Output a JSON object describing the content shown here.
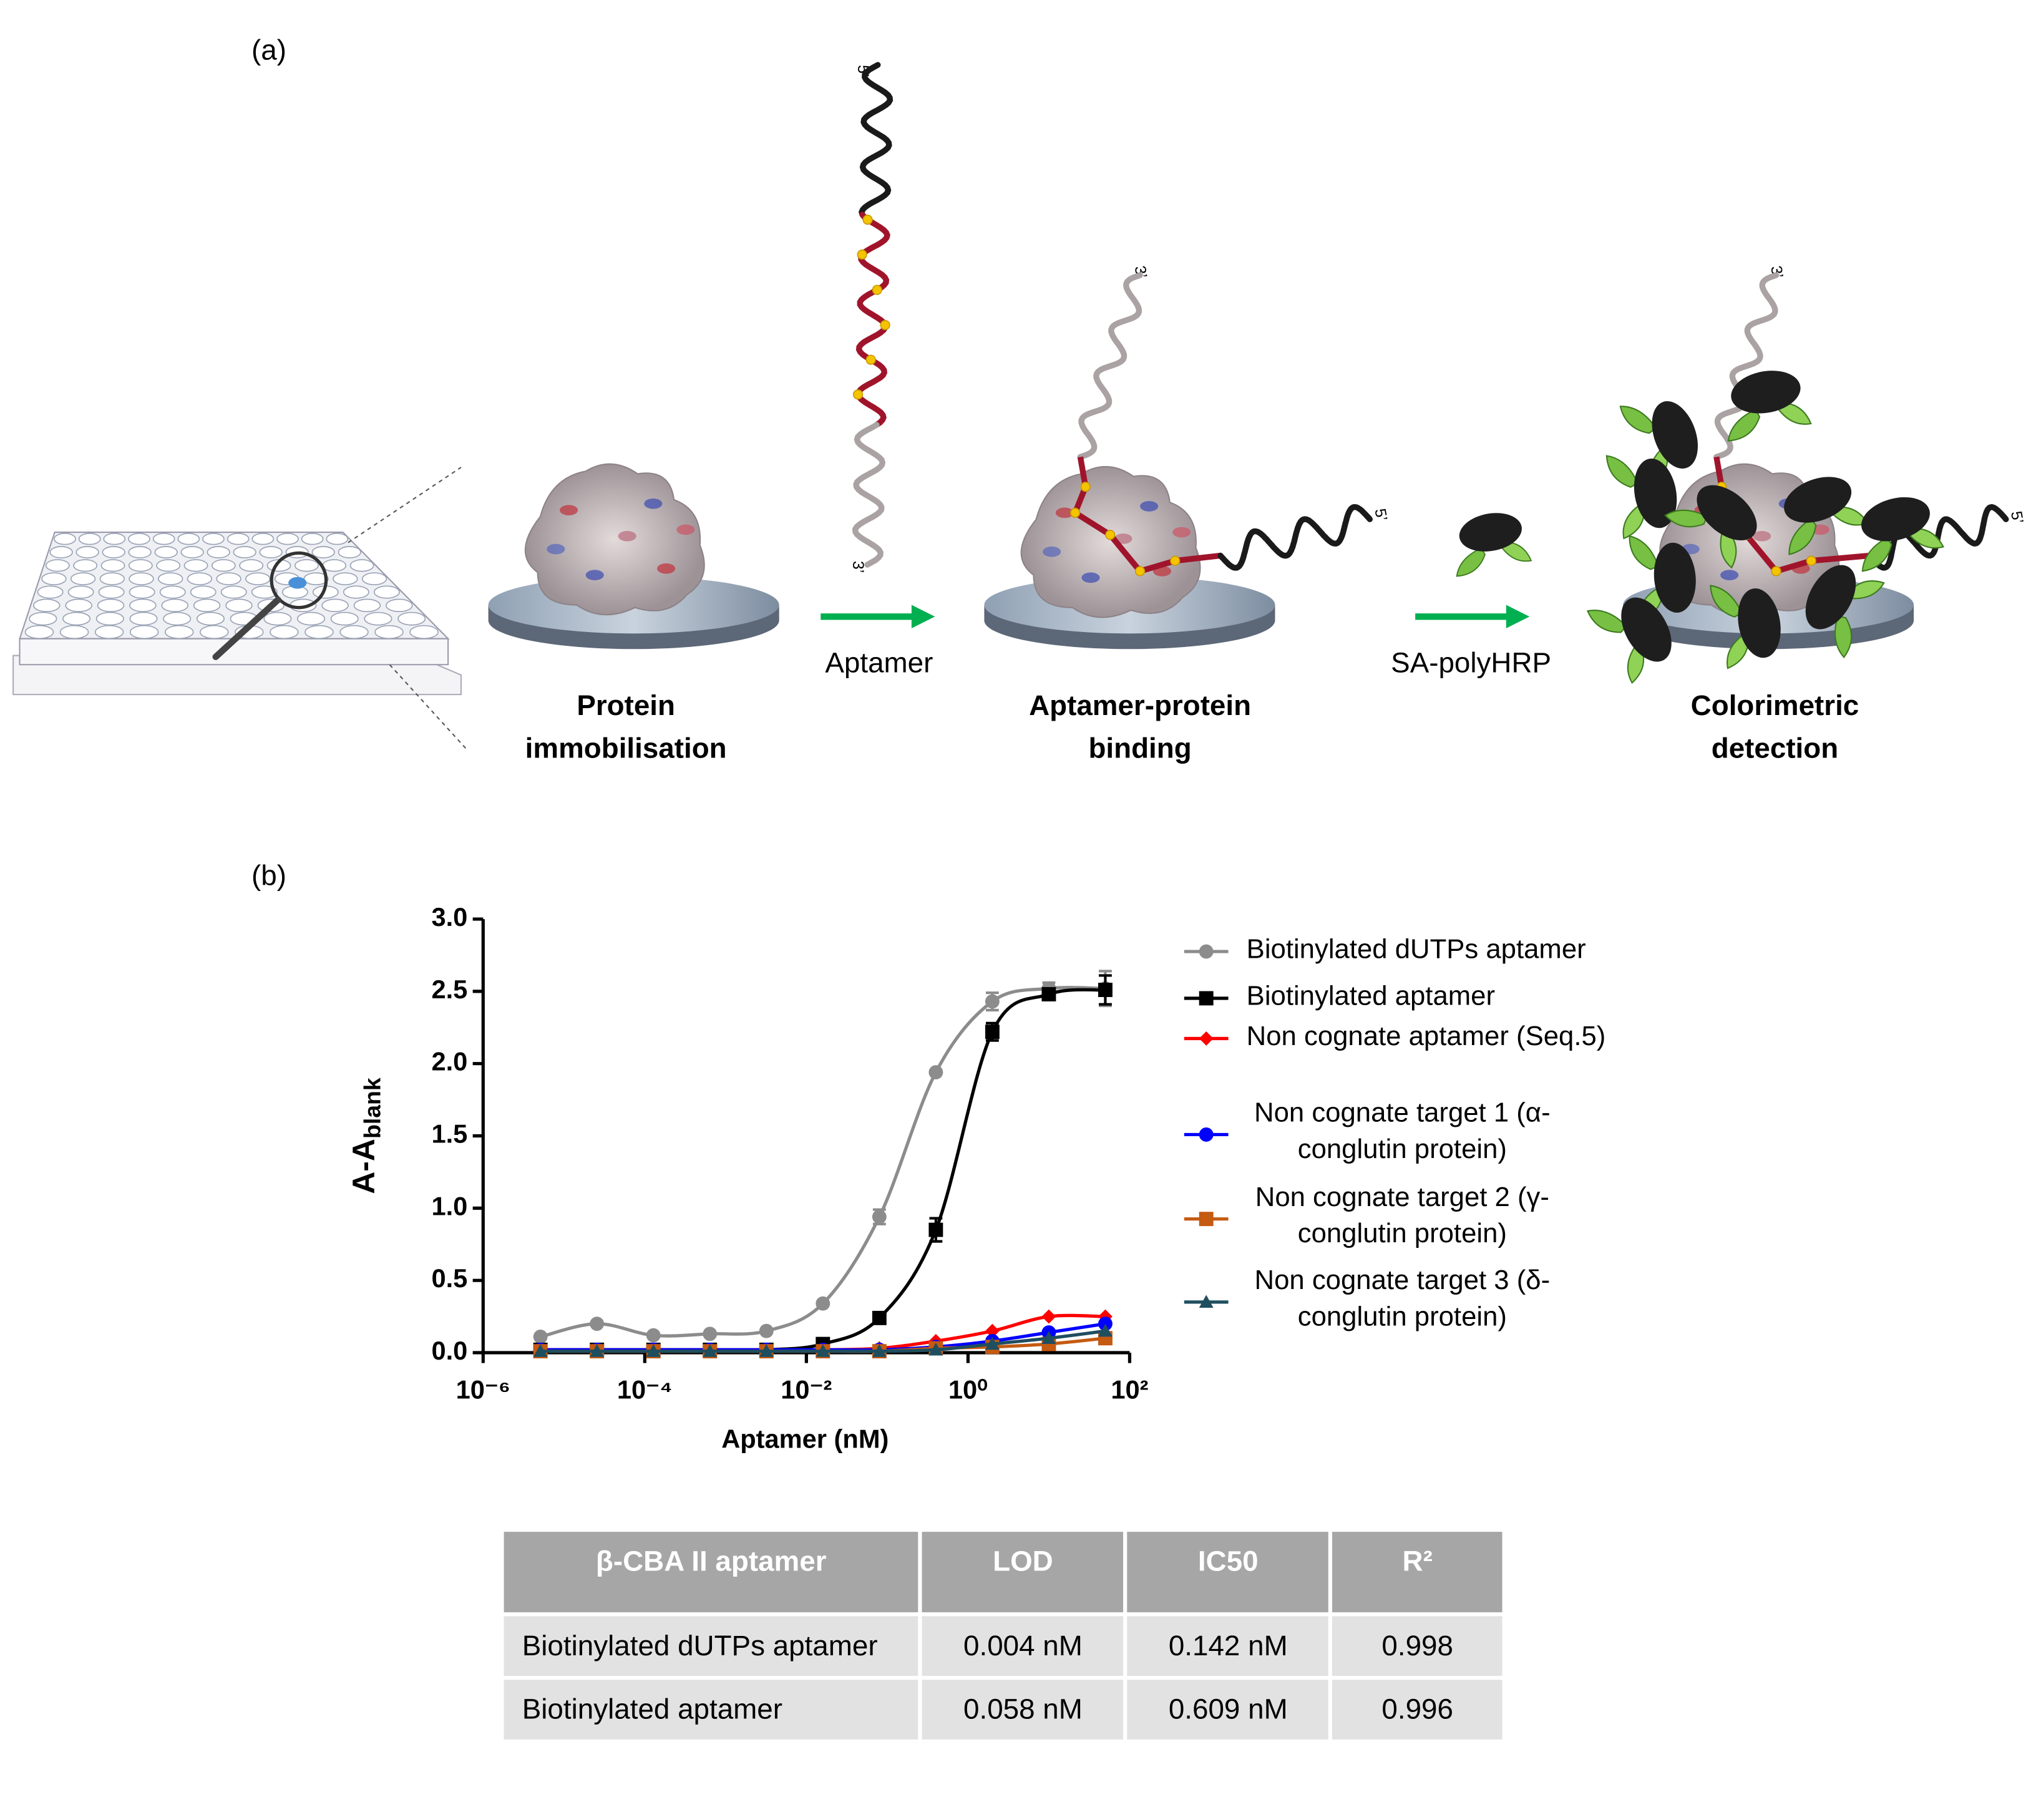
{
  "panel_a": {
    "label": "(a)",
    "five_prime": "5’",
    "three_prime": "3’",
    "steps": [
      {
        "lines": [
          "Protein",
          "immobilisation"
        ]
      },
      {
        "lines": [
          "Aptamer-protein",
          "binding"
        ]
      },
      {
        "lines": [
          "Colorimetric",
          "detection"
        ]
      }
    ],
    "arrows": [
      "Aptamer",
      "SA-polyHRP"
    ]
  },
  "panel_b_label": "(b)",
  "chart_data": {
    "type": "line",
    "xscale": "log",
    "xlabel": "Aptamer (nM)",
    "ylabel": "A-A",
    "ylabel_sub": "blank",
    "x": [
      5.12e-06,
      2.56e-05,
      0.000128,
      0.00064,
      0.0032,
      0.016,
      0.08,
      0.4,
      2,
      10,
      50
    ],
    "xlim": [
      1e-06,
      100
    ],
    "xticks": [
      {
        "value": 1e-06,
        "label": "10⁻⁶"
      },
      {
        "value": 0.0001,
        "label": "10⁻⁴"
      },
      {
        "value": 0.01,
        "label": "10⁻²"
      },
      {
        "value": 1,
        "label": "10⁰"
      },
      {
        "value": 100,
        "label": "10²"
      }
    ],
    "ylim": [
      0,
      3
    ],
    "yticks": [
      {
        "value": 0,
        "label": "0.0"
      },
      0.5,
      {
        "value": 1,
        "label": "1.0"
      },
      1.5,
      {
        "value": 2,
        "label": "2.0"
      },
      2.5,
      {
        "value": 3,
        "label": "3.0"
      }
    ],
    "series": [
      {
        "name": "Biotinylated dUTPs aptamer",
        "color": "#8c8c8c",
        "marker": "circle",
        "values": [
          0.11,
          0.2,
          0.12,
          0.13,
          0.15,
          0.34,
          0.94,
          1.94,
          2.43,
          2.52,
          2.52
        ],
        "errors": [
          0,
          0,
          0,
          0,
          0,
          0,
          0.05,
          0,
          0.06,
          0.04,
          0.12
        ]
      },
      {
        "name": "Biotinylated aptamer",
        "color": "#000000",
        "marker": "square",
        "values": [
          0.02,
          0.02,
          0.02,
          0.02,
          0.02,
          0.06,
          0.24,
          0.85,
          2.22,
          2.48,
          2.51
        ],
        "errors": [
          0,
          0,
          0,
          0,
          0,
          0,
          0,
          0.08,
          0.06,
          0.04,
          0.1
        ]
      },
      {
        "name": "Non cognate aptamer (Seq.5)",
        "color": "#ff0000",
        "marker": "diamond",
        "values": [
          0.02,
          0.02,
          0.02,
          0.02,
          0.02,
          0.02,
          0.03,
          0.08,
          0.15,
          0.25,
          0.25
        ]
      },
      {
        "name": "Non cognate target 1 (α-conglutin protein)",
        "color": "#0000ff",
        "marker": "circle",
        "values": [
          0.02,
          0.02,
          0.02,
          0.02,
          0.02,
          0.02,
          0.02,
          0.04,
          0.08,
          0.14,
          0.2
        ]
      },
      {
        "name": "Non cognate target 2 (γ-conglutin protein)",
        "color": "#c55a11",
        "marker": "square",
        "values": [
          0.01,
          0.01,
          0.01,
          0.01,
          0.01,
          0.01,
          0.01,
          0.03,
          0.04,
          0.06,
          0.1
        ]
      },
      {
        "name": "Non cognate target 3 (δ-conglutin protein)",
        "color": "#1f4e5f",
        "marker": "triangle",
        "values": [
          0.01,
          0.01,
          0.01,
          0.01,
          0.01,
          0.01,
          0.01,
          0.02,
          0.06,
          0.1,
          0.15
        ]
      }
    ]
  },
  "table": {
    "header": [
      "β-CBA II aptamer",
      "LOD",
      "IC50",
      "R²"
    ],
    "rows": [
      [
        "Biotinylated dUTPs aptamer",
        "0.004 nM",
        "0.142 nM",
        "0.998"
      ],
      [
        "Biotinylated aptamer",
        "0.058 nM",
        "0.609 nM",
        "0.996"
      ]
    ]
  }
}
